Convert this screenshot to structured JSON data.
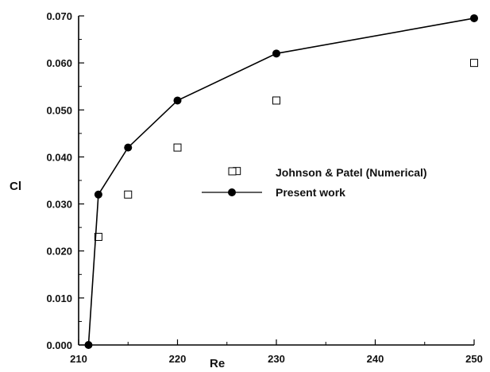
{
  "chart_data": {
    "type": "scatter",
    "xlabel": "Re",
    "ylabel": "Cl",
    "xlim": [
      210,
      250
    ],
    "ylim": [
      0,
      0.07
    ],
    "xticks": [
      210,
      220,
      230,
      240,
      250
    ],
    "yticks": [
      0,
      0.01,
      0.02,
      0.03,
      0.04,
      0.05,
      0.06,
      0.07
    ],
    "xtick_labels": [
      "210",
      "220",
      "230",
      "240",
      "250"
    ],
    "ytick_labels": [
      "0.000",
      "0.010",
      "0.020",
      "0.030",
      "0.040",
      "0.050",
      "0.060",
      "0.070"
    ],
    "grid": false,
    "legend_position": "center-right",
    "series": [
      {
        "name": "Johnson & Patel  (Numerical)",
        "marker": "open-square",
        "line": false,
        "color": "#000000",
        "x": [
          212,
          215,
          220,
          226,
          230,
          250
        ],
        "y": [
          0.023,
          0.032,
          0.042,
          0.037,
          0.052,
          0.06
        ]
      },
      {
        "name": "Present work",
        "marker": "filled-circle",
        "line": true,
        "color": "#000000",
        "x": [
          211,
          212,
          215,
          220,
          230,
          250
        ],
        "y": [
          0.0,
          0.032,
          0.042,
          0.052,
          0.062,
          0.0695
        ]
      }
    ]
  }
}
